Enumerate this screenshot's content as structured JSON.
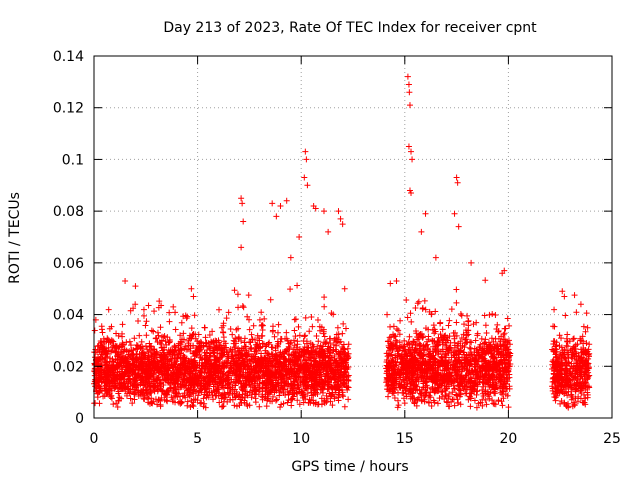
{
  "chart_data": {
    "type": "scatter",
    "title": "Day 213 of 2023, Rate Of TEC Index for receiver cpnt",
    "xlabel": "GPS time / hours",
    "ylabel": "ROTI / TECUs",
    "xlim": [
      0,
      25
    ],
    "ylim": [
      0,
      0.14
    ],
    "xticks": [
      0,
      5,
      10,
      15,
      20,
      25
    ],
    "xtick_labels": [
      "0",
      "5",
      "10",
      "15",
      "20",
      "25"
    ],
    "yticks": [
      0,
      0.02,
      0.04,
      0.06,
      0.08,
      0.1,
      0.12,
      0.14
    ],
    "ytick_labels": [
      "0",
      "0.02",
      "0.04",
      "0.06",
      "0.08",
      "0.1",
      "0.12",
      "0.14"
    ],
    "grid": true,
    "marker": "+",
    "color": "#ff0000",
    "segments": [
      {
        "start": 0.0,
        "end": 12.3,
        "base": 0.018,
        "spread": 0.012
      },
      {
        "start": 14.1,
        "end": 20.1,
        "base": 0.019,
        "spread": 0.013
      },
      {
        "start": 22.1,
        "end": 23.9,
        "base": 0.018,
        "spread": 0.012
      }
    ],
    "notable_points": [
      {
        "x": 15.15,
        "y": 0.132
      },
      {
        "x": 15.2,
        "y": 0.129
      },
      {
        "x": 15.22,
        "y": 0.126
      },
      {
        "x": 15.25,
        "y": 0.121
      },
      {
        "x": 15.2,
        "y": 0.105
      },
      {
        "x": 15.3,
        "y": 0.103
      },
      {
        "x": 15.35,
        "y": 0.1
      },
      {
        "x": 15.25,
        "y": 0.088
      },
      {
        "x": 15.3,
        "y": 0.087
      },
      {
        "x": 10.2,
        "y": 0.103
      },
      {
        "x": 10.25,
        "y": 0.1
      },
      {
        "x": 10.15,
        "y": 0.093
      },
      {
        "x": 10.3,
        "y": 0.09
      },
      {
        "x": 10.6,
        "y": 0.082
      },
      {
        "x": 10.7,
        "y": 0.081
      },
      {
        "x": 7.1,
        "y": 0.085
      },
      {
        "x": 7.15,
        "y": 0.083
      },
      {
        "x": 7.2,
        "y": 0.076
      },
      {
        "x": 7.1,
        "y": 0.066
      },
      {
        "x": 8.6,
        "y": 0.083
      },
      {
        "x": 9.0,
        "y": 0.082
      },
      {
        "x": 9.3,
        "y": 0.084
      },
      {
        "x": 8.8,
        "y": 0.078
      },
      {
        "x": 11.1,
        "y": 0.08
      },
      {
        "x": 11.8,
        "y": 0.08
      },
      {
        "x": 11.9,
        "y": 0.077
      },
      {
        "x": 12.0,
        "y": 0.075
      },
      {
        "x": 17.5,
        "y": 0.093
      },
      {
        "x": 17.55,
        "y": 0.091
      },
      {
        "x": 17.4,
        "y": 0.079
      },
      {
        "x": 17.6,
        "y": 0.074
      },
      {
        "x": 16.0,
        "y": 0.079
      },
      {
        "x": 15.8,
        "y": 0.072
      },
      {
        "x": 18.2,
        "y": 0.06
      },
      {
        "x": 19.8,
        "y": 0.057
      },
      {
        "x": 19.7,
        "y": 0.056
      },
      {
        "x": 22.6,
        "y": 0.049
      },
      {
        "x": 22.7,
        "y": 0.047
      },
      {
        "x": 23.5,
        "y": 0.044
      },
      {
        "x": 4.7,
        "y": 0.05
      },
      {
        "x": 4.8,
        "y": 0.047
      },
      {
        "x": 1.5,
        "y": 0.053
      },
      {
        "x": 2.0,
        "y": 0.051
      },
      {
        "x": 14.3,
        "y": 0.052
      },
      {
        "x": 14.6,
        "y": 0.053
      },
      {
        "x": 11.3,
        "y": 0.072
      },
      {
        "x": 9.9,
        "y": 0.07
      },
      {
        "x": 9.5,
        "y": 0.062
      },
      {
        "x": 16.5,
        "y": 0.062
      },
      {
        "x": 12.1,
        "y": 0.05
      }
    ]
  }
}
